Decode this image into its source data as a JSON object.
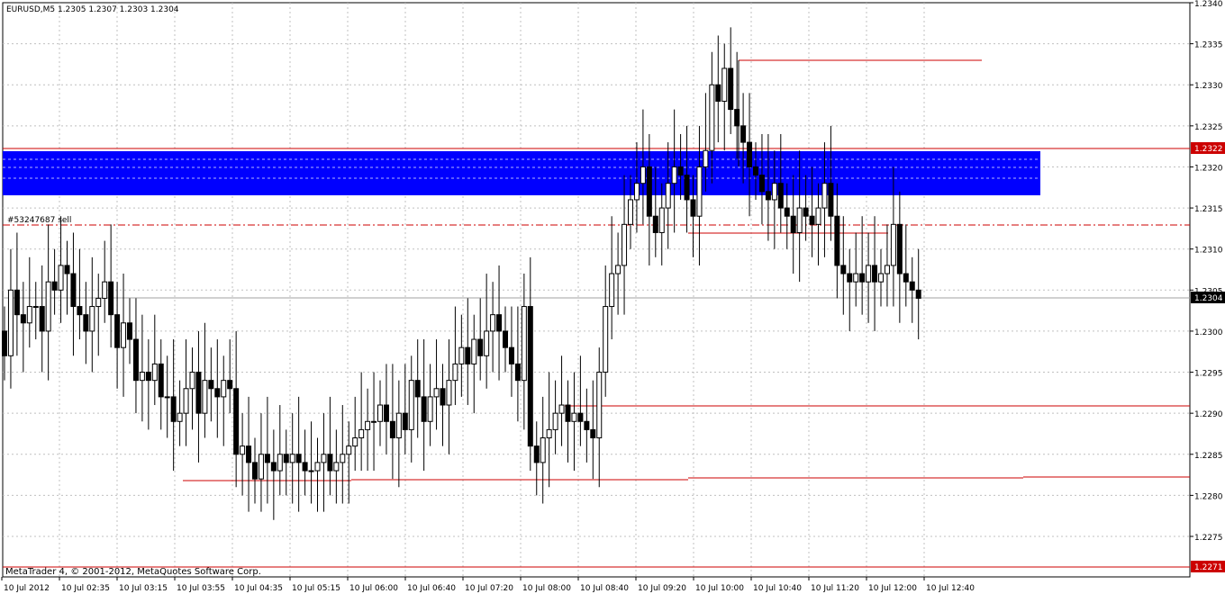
{
  "window": {
    "header": "EURUSD,M5  1.2305 1.2307 1.2303 1.2304",
    "copyright": "MetaTrader 4, © 2001-2012, MetaQuotes Software Corp."
  },
  "order_label": "#53247687 sell",
  "price_tags": {
    "upper_line": "1.2322",
    "current": "1.2304",
    "lower_line": "1.2271"
  },
  "colors": {
    "zone": "#0000ff",
    "lines": "#cc0000",
    "grid": "#c0c0c0",
    "current_tag_bg": "#000000",
    "line_tag_bg": "#cc0000"
  },
  "chart_data": {
    "type": "candlestick",
    "symbol": "EURUSD",
    "timeframe": "M5",
    "ylim": [
      1.2268,
      1.234
    ],
    "y_ticks": [
      "1.2340",
      "1.2335",
      "1.2330",
      "1.2325",
      "1.2320",
      "1.2315",
      "1.2310",
      "1.2305",
      "1.2300",
      "1.2295",
      "1.2290",
      "1.2285",
      "1.2280",
      "1.2275"
    ],
    "x_ticks": [
      "10 Jul 2012",
      "10 Jul 02:35",
      "10 Jul 03:15",
      "10 Jul 03:55",
      "10 Jul 04:35",
      "10 Jul 05:15",
      "10 Jul 06:00",
      "10 Jul 06:40",
      "10 Jul 07:20",
      "10 Jul 08:00",
      "10 Jul 08:40",
      "10 Jul 09:20",
      "10 Jul 10:00",
      "10 Jul 10:40",
      "10 Jul 11:20",
      "10 Jul 12:00",
      "10 Jul 12:40"
    ],
    "closes": [
      1.2297,
      1.2305,
      1.2302,
      1.2301,
      1.2303,
      1.2303,
      1.23,
      1.2306,
      1.2305,
      1.2308,
      1.2307,
      1.2303,
      1.2302,
      1.23,
      1.2303,
      1.2304,
      1.2306,
      1.2302,
      1.2298,
      1.2301,
      1.2299,
      1.2294,
      1.2295,
      1.2294,
      1.2296,
      1.2292,
      1.2292,
      1.2289,
      1.229,
      1.2293,
      1.2295,
      1.229,
      1.2294,
      1.2293,
      1.2292,
      1.2294,
      1.2293,
      1.2285,
      1.2286,
      1.2284,
      1.2282,
      1.2285,
      1.2284,
      1.2283,
      1.2285,
      1.2284,
      1.2285,
      1.2284,
      1.2283,
      1.2283,
      1.2284,
      1.2285,
      1.2283,
      1.2284,
      1.2285,
      1.2286,
      1.2287,
      1.2288,
      1.2289,
      1.2289,
      1.2291,
      1.2289,
      1.2287,
      1.229,
      1.2288,
      1.2294,
      1.2292,
      1.2289,
      1.2292,
      1.2293,
      1.2291,
      1.2294,
      1.2296,
      1.2298,
      1.2296,
      1.2299,
      1.2297,
      1.23,
      1.2302,
      1.23,
      1.2298,
      1.2296,
      1.2294,
      1.2303,
      1.2286,
      1.2284,
      1.2287,
      1.2288,
      1.229,
      1.2291,
      1.2289,
      1.229,
      1.2289,
      1.2288,
      1.2287,
      1.2295,
      1.2303,
      1.2307,
      1.2308,
      1.2313,
      1.2316,
      1.2318,
      1.232,
      1.2314,
      1.2312,
      1.2315,
      1.2318,
      1.232,
      1.2319,
      1.2316,
      1.2314,
      1.232,
      1.2322,
      1.233,
      1.2328,
      1.2332,
      1.2327,
      1.2325,
      1.2323,
      1.232,
      1.2319,
      1.2317,
      1.2316,
      1.2318,
      1.2315,
      1.2314,
      1.2312,
      1.2315,
      1.2314,
      1.2313,
      1.2315,
      1.2318,
      1.2314,
      1.2308,
      1.2307,
      1.2306,
      1.2307,
      1.2306,
      1.2308,
      1.2306,
      1.2307,
      1.2308,
      1.2313,
      1.2307,
      1.2306,
      1.2305,
      1.2304
    ]
  }
}
